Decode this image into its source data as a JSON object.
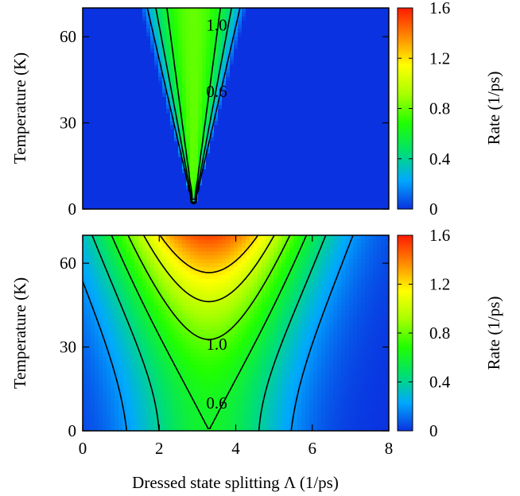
{
  "figure": {
    "xlabel": "Dressed state splitting Λ (1/ps)"
  },
  "chart_data": [
    {
      "type": "heatmap",
      "panel": "top",
      "xlabel": "",
      "ylabel": "Temperature (K)",
      "xlim": [
        0,
        8
      ],
      "ylim": [
        0,
        70
      ],
      "xticks": [],
      "yticks": [
        0,
        30,
        60
      ],
      "colorbar": {
        "label": "Rate (1/ps)",
        "range": [
          0,
          1.6
        ],
        "ticks": [
          "0",
          "0.4",
          "0.8",
          "1.2",
          "1.6"
        ],
        "colors": [
          "#0a32e0",
          "#00a8ff",
          "#00e070",
          "#20ff00",
          "#a8ff00",
          "#ffff00",
          "#ff8a00",
          "#ff1a00"
        ]
      },
      "contour_levels": [
        0.2,
        0.4,
        0.6,
        0.8,
        1.0
      ],
      "contour_labels": [
        {
          "text": "1.0",
          "x": 3.5,
          "y": 64
        },
        {
          "text": "0.6",
          "x": 3.5,
          "y": 41
        }
      ],
      "model": {
        "kind": "parabolic",
        "x0": 2.9,
        "a": 0.8,
        "k": 0.0004
      }
    },
    {
      "type": "heatmap",
      "panel": "bottom",
      "xlabel": "",
      "ylabel": "Temperature (K)",
      "xlim": [
        0,
        8
      ],
      "ylim": [
        0,
        70
      ],
      "xticks": [
        0,
        2,
        4,
        6,
        8
      ],
      "yticks": [
        0,
        30,
        60
      ],
      "colorbar": {
        "label": "Rate (1/ps)",
        "range": [
          0,
          1.6
        ],
        "ticks": [
          "0",
          "0.4",
          "0.8",
          "1.2",
          "1.6"
        ],
        "colors": [
          "#0a32e0",
          "#00a8ff",
          "#00e070",
          "#20ff00",
          "#a8ff00",
          "#ffff00",
          "#ff8a00",
          "#ff1a00"
        ]
      },
      "contour_levels": [
        0.2,
        0.4,
        0.6,
        0.8,
        1.0,
        1.2
      ],
      "contour_labels": [
        {
          "text": "1.0",
          "x": 3.5,
          "y": 31
        },
        {
          "text": "0.6",
          "x": 3.5,
          "y": 10
        }
      ],
      "model": {
        "kind": "gaussian",
        "x0": 3.3,
        "base": 0.7,
        "sigma": 1.45,
        "r0": 0.08
      }
    }
  ]
}
